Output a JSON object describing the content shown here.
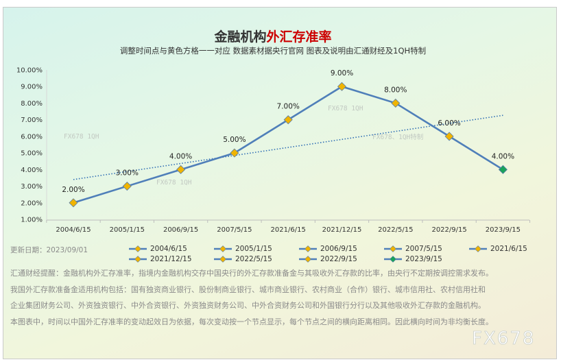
{
  "chart_data": {
    "type": "line",
    "title_part1": "金融机构",
    "title_part2": "外汇存准率",
    "subtitle": "调整时间点与黄色方格一一对应 数据素材据央行官网 图表及说明由汇通财经及1QH特制",
    "categories": [
      "2004/6/15",
      "2005/1/15",
      "2006/9/15",
      "2007/5/15",
      "2021/6/15",
      "2021/12/15",
      "2022/5/15",
      "2022/9/15",
      "2023/9/15"
    ],
    "values": [
      2.0,
      3.0,
      4.0,
      5.0,
      7.0,
      9.0,
      8.0,
      6.0,
      4.0
    ],
    "data_labels": [
      "2.00%",
      "3.00%",
      "4.00%",
      "5.00%",
      "7.00%",
      "9.00%",
      "8.00%",
      "6.00%",
      "4.00%"
    ],
    "y_ticks": [
      "1.00%",
      "2.00%",
      "3.00%",
      "4.00%",
      "5.00%",
      "6.00%",
      "7.00%",
      "8.00%",
      "9.00%",
      "10.00%"
    ],
    "ylim": [
      1,
      10
    ],
    "grid": false,
    "trendline": "linear, dotted",
    "legend": [
      "2004/6/15",
      "2005/1/15",
      "2006/9/15",
      "2007/5/15",
      "2021/6/15",
      "2021/12/15",
      "2022/5/15",
      "2022/9/15",
      "2023/9/15"
    ],
    "legend_placement": "bottom"
  },
  "colors": {
    "line": "#4f7fb9",
    "marker": "#f0b400",
    "last_marker": "#1aa35a",
    "title_main": "#333333",
    "title_accent": "#cc0000",
    "trend": "#2e6db4"
  },
  "watermarks": [
    "FX678 1QH",
    "FX678  1QH",
    "FX678 1QH",
    "FX678、1QH特制",
    "FX678"
  ],
  "notes": {
    "update_date": "更新日期：2023/09/01",
    "line1": "汇通财经提醒：金融机构外汇存准率，指境内金融机构交存中国央行的外汇存款准备金与其吸收外汇存款的比率，由央行不定期按调控需求发布。",
    "line2": "我国外汇存款准备金适用机构包括：国有独资商业银行、股份制商业银行、城市商业银行、农村商业（合作）银行、城市信用社、农村信用社和",
    "line3": "企业集团财务公司、外资独资银行、中外合资银行、外资独资财务公司、中外合资财务公司和外国银行分行以及其他吸收外汇存款的金融机构。",
    "line4": "本图表中，时间以中国外汇存准率的变动起效日为依据，每次变动按一个节点显示，每个节点之间的横向距离相同。因此横向时间为非均衡长度。"
  }
}
